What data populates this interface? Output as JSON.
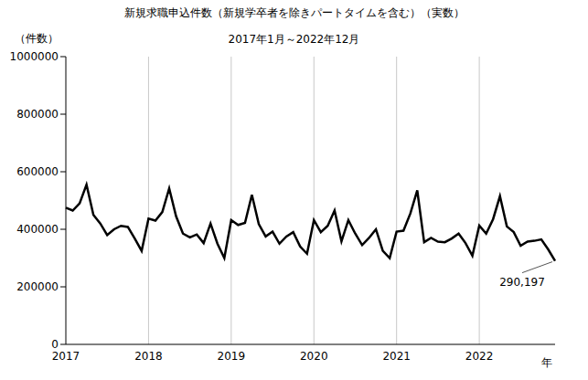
{
  "chart_data": {
    "type": "line",
    "title": "新規求職申込件数（新規学卒者を除きパートタイムを含む）（実数）",
    "subtitle": "2017年1月～2022年12月",
    "y_label": "（件数）",
    "x_label": "年",
    "annotation": "290,197",
    "categories": [
      "2017",
      null,
      null,
      null,
      null,
      null,
      null,
      null,
      null,
      null,
      null,
      null,
      "2018",
      null,
      null,
      null,
      null,
      null,
      null,
      null,
      null,
      null,
      null,
      null,
      "2019",
      null,
      null,
      null,
      null,
      null,
      null,
      null,
      null,
      null,
      null,
      null,
      "2020",
      null,
      null,
      null,
      null,
      null,
      null,
      null,
      null,
      null,
      null,
      null,
      "2021",
      null,
      null,
      null,
      null,
      null,
      null,
      null,
      null,
      null,
      null,
      null,
      "2022",
      null,
      null,
      null,
      null,
      null,
      null,
      null,
      null,
      null,
      null,
      null
    ],
    "values": [
      475000,
      465000,
      490000,
      555000,
      450000,
      420000,
      380000,
      400000,
      412000,
      408000,
      368000,
      325000,
      437000,
      430000,
      460000,
      542000,
      445000,
      385000,
      372000,
      382000,
      352000,
      420000,
      350000,
      300000,
      432000,
      415000,
      422000,
      520000,
      418000,
      375000,
      392000,
      350000,
      375000,
      390000,
      340000,
      315000,
      432000,
      390000,
      412000,
      465000,
      358000,
      432000,
      385000,
      345000,
      370000,
      400000,
      325000,
      300000,
      392000,
      395000,
      455000,
      535000,
      355000,
      370000,
      357000,
      355000,
      368000,
      385000,
      352000,
      308000,
      413000,
      385000,
      435000,
      515000,
      410000,
      390000,
      343000,
      357000,
      360000,
      365000,
      330000,
      290197
    ],
    "color": "#000000",
    "ylim": [
      0,
      1000000
    ],
    "yticks": [
      0,
      200000,
      400000,
      600000,
      800000,
      1000000
    ],
    "grid": true
  }
}
